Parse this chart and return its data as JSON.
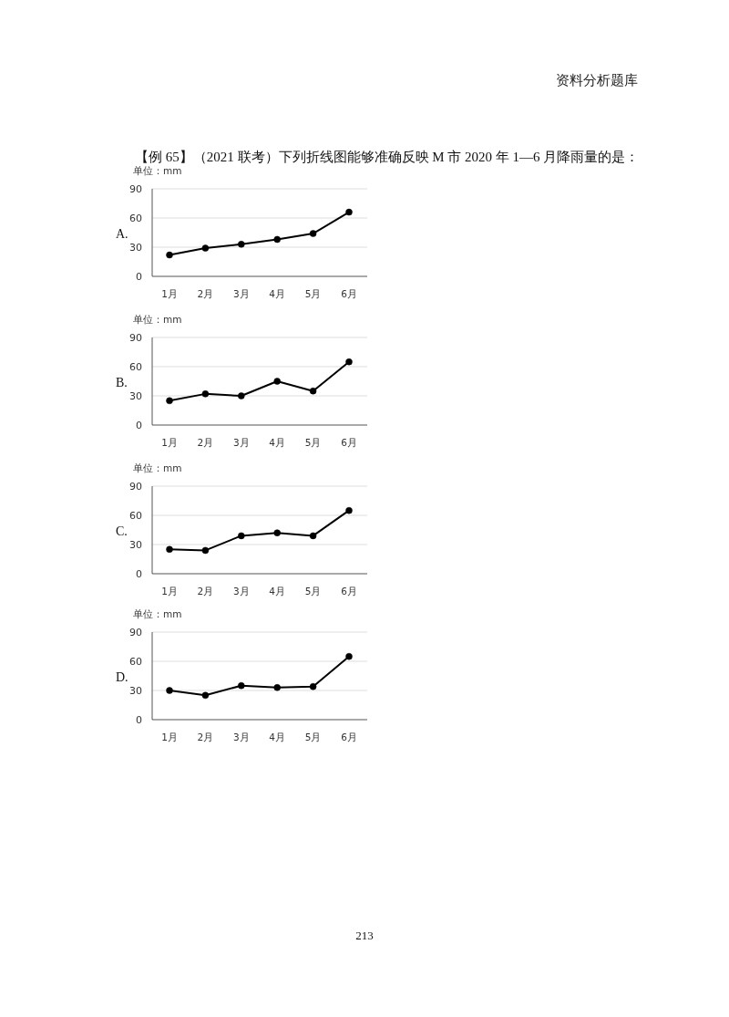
{
  "chart_data": [
    {
      "type": "line",
      "title": "【例 65】（2021 联考）下列折线图能够准确反映 M 市 2020 年 1—6 月降雨量的是：",
      "ylabel": "单位：mm",
      "categories": [
        "1月",
        "2月",
        "3月",
        "4月",
        "5月",
        "6月"
      ],
      "values": [
        22,
        29,
        33,
        38,
        44,
        66
      ],
      "color": "#000000",
      "ylim": [
        0,
        90
      ],
      "yticks": [
        0,
        30,
        60,
        90
      ],
      "grid": "y",
      "marker": "circle",
      "annotations": [
        "A.",
        "资料分析题库",
        "213"
      ]
    },
    {
      "type": "line",
      "ylabel": "单位：mm",
      "categories": [
        "1月",
        "2月",
        "3月",
        "4月",
        "5月",
        "6月"
      ],
      "values": [
        25,
        32,
        30,
        45,
        35,
        65
      ],
      "color": "#000000",
      "ylim": [
        0,
        90
      ],
      "yticks": [
        0,
        30,
        60,
        90
      ],
      "grid": "y",
      "marker": "circle",
      "annotations": [
        "B."
      ]
    },
    {
      "type": "line",
      "ylabel": "单位：mm",
      "categories": [
        "1月",
        "2月",
        "3月",
        "4月",
        "5月",
        "6月"
      ],
      "values": [
        25,
        24,
        39,
        42,
        39,
        65
      ],
      "color": "#000000",
      "ylim": [
        0,
        90
      ],
      "yticks": [
        0,
        30,
        60,
        90
      ],
      "grid": "y",
      "marker": "circle",
      "annotations": [
        "C."
      ]
    },
    {
      "type": "line",
      "ylabel": "单位：mm",
      "categories": [
        "1月",
        "2月",
        "3月",
        "4月",
        "5月",
        "6月"
      ],
      "values": [
        30,
        25,
        35,
        33,
        34,
        65
      ],
      "color": "#000000",
      "ylim": [
        0,
        90
      ],
      "yticks": [
        0,
        30,
        60,
        90
      ],
      "grid": "y",
      "marker": "circle",
      "annotations": [
        "D."
      ]
    }
  ]
}
